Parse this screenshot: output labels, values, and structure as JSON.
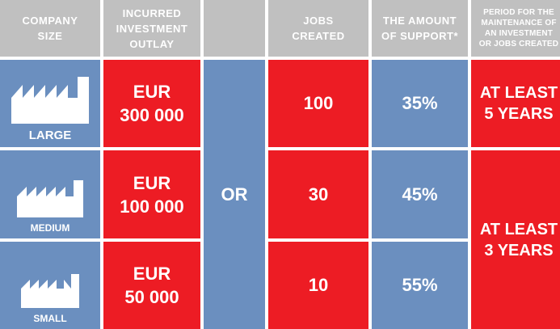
{
  "headers": {
    "company_size": "COMPANY\nSIZE",
    "investment": "INCURRED\nINVESTMENT\nOUTLAY",
    "blank": "",
    "jobs": "JOBS\nCREATED",
    "support": "THE AMOUNT\nOF SUPPORT*",
    "period": "PERIOD FOR THE\nMAINTENANCE OF\nAN INVESTMENT\nOR JOBS CREATED"
  },
  "rows": [
    {
      "size": "LARGE",
      "icon": "factory-icon",
      "investment": "EUR\n300 000",
      "jobs": "100",
      "support": "35%"
    },
    {
      "size": "MEDIUM",
      "icon": "factory-icon",
      "investment": "EUR\n100 000",
      "jobs": "30",
      "support": "45%"
    },
    {
      "size": "SMALL",
      "icon": "factory-icon",
      "investment": "EUR\n50 000",
      "jobs": "10",
      "support": "55%"
    }
  ],
  "or_label": "OR",
  "periods": {
    "large": "AT LEAST\n5 YEARS",
    "medium_small": "AT LEAST\n3 YEARS"
  },
  "colors": {
    "header": "#c0c0c0",
    "red": "#ed1c24",
    "blue": "#6b8fbf"
  }
}
